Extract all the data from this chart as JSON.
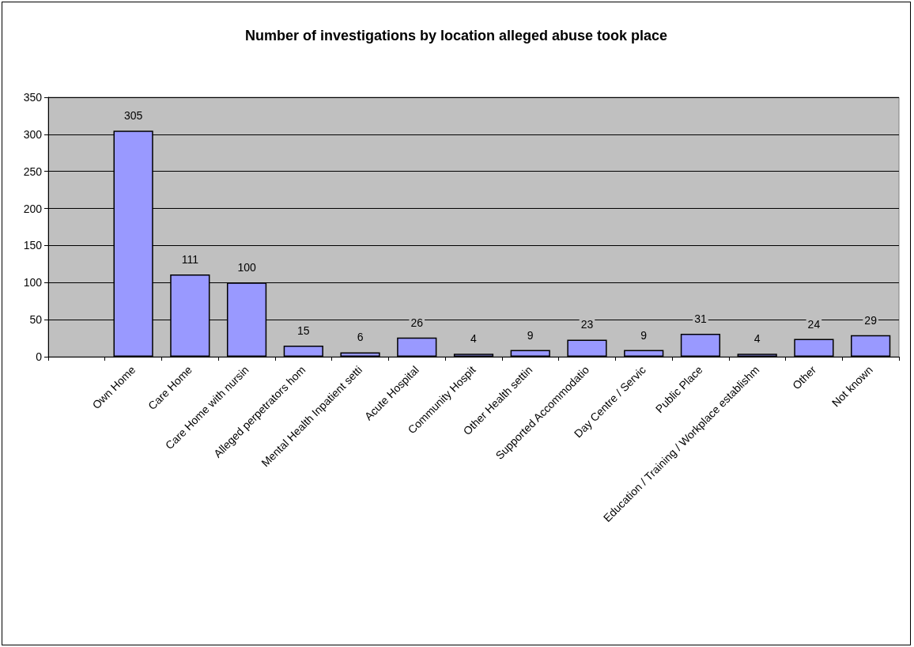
{
  "chart_data": {
    "type": "bar",
    "title": "Number of investigations by location alleged abuse took place",
    "categories": [
      null,
      "Own Home",
      "Care Home",
      "Care Home with nursin",
      "Alleged perpetrators hom",
      "Mental Health Inpatient setti",
      "Acute Hospital",
      "Community Hospit",
      "Other Health settin",
      "Supported Accommodatio",
      "Day Centre / Servic",
      "Public Place",
      "Education / Training / Workplace establishm",
      "Other",
      "Not known"
    ],
    "values": [
      null,
      305,
      111,
      100,
      15,
      6,
      26,
      4,
      9,
      23,
      9,
      31,
      4,
      24,
      29
    ],
    "color": "#9999ff",
    "ylim": [
      0,
      350
    ],
    "yticks": [
      0,
      50,
      100,
      150,
      200,
      250,
      300,
      350
    ],
    "grid": "y",
    "data_labels": true
  }
}
